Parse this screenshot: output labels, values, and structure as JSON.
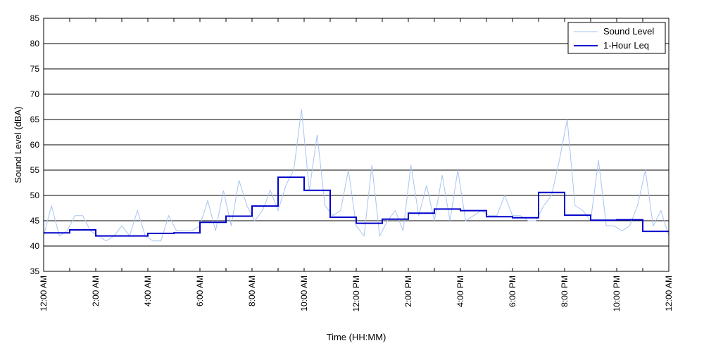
{
  "chart_data": {
    "type": "line",
    "xlabel": "Time (HH:MM)",
    "ylabel": "Sound Level (dBA)",
    "ylim": [
      35,
      85
    ],
    "xlim": [
      0,
      24
    ],
    "x_unit": "hours",
    "grid": {
      "horizontal": true,
      "vertical": false
    },
    "yticks": [
      35,
      40,
      45,
      50,
      55,
      60,
      65,
      70,
      75,
      80,
      85
    ],
    "xticks": [
      {
        "x": 0,
        "label": "12:00 AM"
      },
      {
        "x": 2,
        "label": "2:00 AM"
      },
      {
        "x": 4,
        "label": "4:00 AM"
      },
      {
        "x": 6,
        "label": "6:00 AM"
      },
      {
        "x": 8,
        "label": "8:00 AM"
      },
      {
        "x": 10,
        "label": "10:00 AM"
      },
      {
        "x": 12,
        "label": "12:00 PM"
      },
      {
        "x": 14,
        "label": "2:00 PM"
      },
      {
        "x": 16,
        "label": "4:00 PM"
      },
      {
        "x": 18,
        "label": "6:00 PM"
      },
      {
        "x": 20,
        "label": "8:00 PM"
      },
      {
        "x": 22,
        "label": "10:00 PM"
      },
      {
        "x": 24,
        "label": "12:00 AM"
      }
    ],
    "minor_xticks": [
      1,
      3,
      5,
      7,
      9,
      11,
      13,
      15,
      17,
      19,
      21,
      23
    ],
    "legend": {
      "placement": "top-right"
    },
    "series": [
      {
        "name": "Sound Level",
        "color": "#a9c4f0",
        "style": "thin-line",
        "x": [
          0.0,
          0.3,
          0.6,
          0.9,
          1.2,
          1.5,
          1.8,
          2.1,
          2.4,
          2.7,
          3.0,
          3.3,
          3.6,
          3.9,
          4.2,
          4.5,
          4.8,
          5.1,
          5.4,
          5.7,
          6.0,
          6.3,
          6.6,
          6.9,
          7.2,
          7.5,
          7.8,
          8.1,
          8.4,
          8.7,
          9.0,
          9.3,
          9.6,
          9.9,
          10.2,
          10.5,
          10.8,
          11.1,
          11.4,
          11.7,
          12.0,
          12.3,
          12.6,
          12.9,
          13.2,
          13.5,
          13.8,
          14.1,
          14.4,
          14.7,
          15.0,
          15.3,
          15.6,
          15.9,
          16.2,
          16.5,
          16.8,
          17.1,
          17.4,
          17.7,
          18.0,
          18.3,
          18.6,
          18.9,
          19.2,
          19.5,
          19.8,
          20.1,
          20.4,
          20.7,
          21.0,
          21.3,
          21.6,
          21.9,
          22.2,
          22.5,
          22.8,
          23.1,
          23.4,
          23.7,
          24.0
        ],
        "y": [
          42,
          48,
          42,
          43,
          46,
          46,
          43,
          42,
          41,
          42,
          44,
          42,
          47,
          42,
          41,
          41,
          46,
          43,
          43,
          43,
          44,
          49,
          43,
          51,
          44,
          53,
          48,
          45,
          47,
          51,
          47,
          52,
          55,
          67,
          51,
          62,
          48,
          46,
          47,
          55,
          44,
          42,
          56,
          42,
          45,
          47,
          43,
          56,
          46,
          52,
          45,
          54,
          45,
          55,
          45,
          46,
          47,
          46,
          46,
          50,
          46,
          46,
          45,
          45,
          48,
          50,
          57,
          65,
          48,
          47,
          45,
          57,
          44,
          44,
          43,
          44,
          48,
          55,
          44,
          47,
          42
        ]
      },
      {
        "name": "1-Hour Leq",
        "color": "#0000cc",
        "style": "step",
        "x": [
          0,
          1,
          2,
          3,
          4,
          5,
          6,
          7,
          8,
          9,
          10,
          11,
          12,
          13,
          14,
          15,
          16,
          17,
          18,
          19,
          20,
          21,
          22,
          23
        ],
        "y": [
          42.6,
          43.2,
          42.0,
          42.0,
          42.5,
          42.6,
          44.7,
          45.9,
          47.9,
          53.6,
          51.0,
          45.7,
          44.5,
          45.3,
          46.5,
          47.3,
          47.0,
          45.8,
          45.6,
          50.6,
          46.1,
          45.1,
          45.2,
          42.9
        ]
      }
    ]
  }
}
